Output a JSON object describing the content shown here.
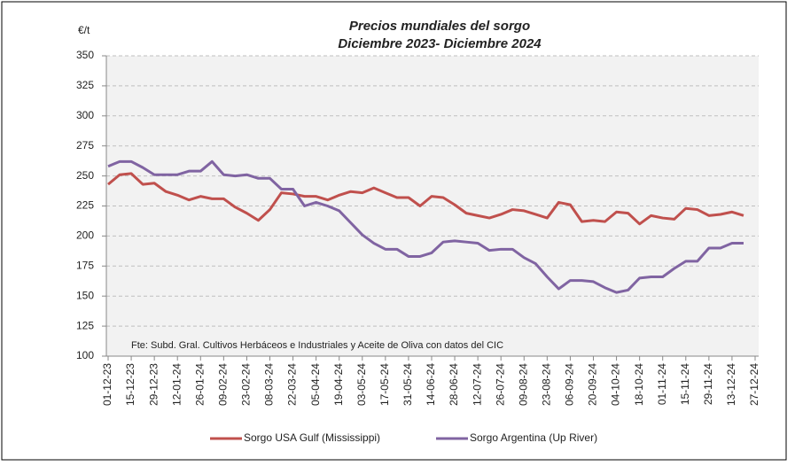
{
  "chart_data": {
    "type": "line",
    "title": "Precios mundiales del sorgo",
    "subtitle": "Diciembre 2023- Diciembre 2024",
    "y_label": "€/t",
    "annotation": "Fte: Subd. Gral. Cultivos Herbáceos e Industriales y Aceite de Oliva con datos del CIC",
    "categories": [
      "01-12-23",
      null,
      "15-12-23",
      null,
      "29-12-23",
      null,
      "12-01-24",
      null,
      "26-01-24",
      null,
      "09-02-24",
      null,
      "23-02-24",
      null,
      "08-03-24",
      null,
      "22-03-24",
      null,
      "05-04-24",
      null,
      "19-04-24",
      null,
      "03-05-24",
      null,
      "17-05-24",
      null,
      "31-05-24",
      null,
      "14-06-24",
      null,
      "28-06-24",
      null,
      "12-07-24",
      null,
      "26-07-24",
      null,
      "09-08-24",
      null,
      "23-08-24",
      null,
      "06-09-24",
      null,
      "20-09-24",
      null,
      "04-10-24",
      null,
      "18-10-24",
      null,
      "01-11-24",
      null,
      "15-11-24",
      null,
      "29-11-24",
      null,
      "13-12-24",
      null,
      "27-12-24"
    ],
    "series": [
      {
        "name": "Sorgo USA Gulf (Mississippi)",
        "color": "#c0504d",
        "values": [
          243,
          251,
          252,
          243,
          244,
          237,
          234,
          230,
          233,
          231,
          231,
          224,
          219,
          213,
          222,
          236,
          235,
          233,
          233,
          230,
          234,
          237,
          236,
          240,
          236,
          232,
          232,
          225,
          233,
          232,
          226,
          219,
          217,
          215,
          218,
          222,
          221,
          218,
          215,
          228,
          226,
          212,
          213,
          212,
          220,
          219,
          210,
          217,
          215,
          214,
          223,
          222,
          217,
          218,
          220,
          217,
          null
        ]
      },
      {
        "name": "Sorgo Argentina (Up River)",
        "color": "#8064a2",
        "values": [
          258,
          262,
          262,
          257,
          251,
          251,
          251,
          254,
          254,
          262,
          251,
          250,
          251,
          248,
          248,
          239,
          239,
          225,
          228,
          225,
          221,
          211,
          201,
          194,
          189,
          189,
          183,
          183,
          186,
          195,
          196,
          195,
          194,
          188,
          189,
          189,
          182,
          177,
          166,
          156,
          163,
          163,
          162,
          157,
          153,
          155,
          165,
          166,
          166,
          173,
          179,
          179,
          190,
          190,
          194,
          194,
          null
        ]
      }
    ],
    "ylim": [
      100,
      350
    ],
    "yticks": [
      100,
      125,
      150,
      175,
      200,
      225,
      250,
      275,
      300,
      325,
      350
    ],
    "grid": true,
    "legend": "bottom"
  }
}
